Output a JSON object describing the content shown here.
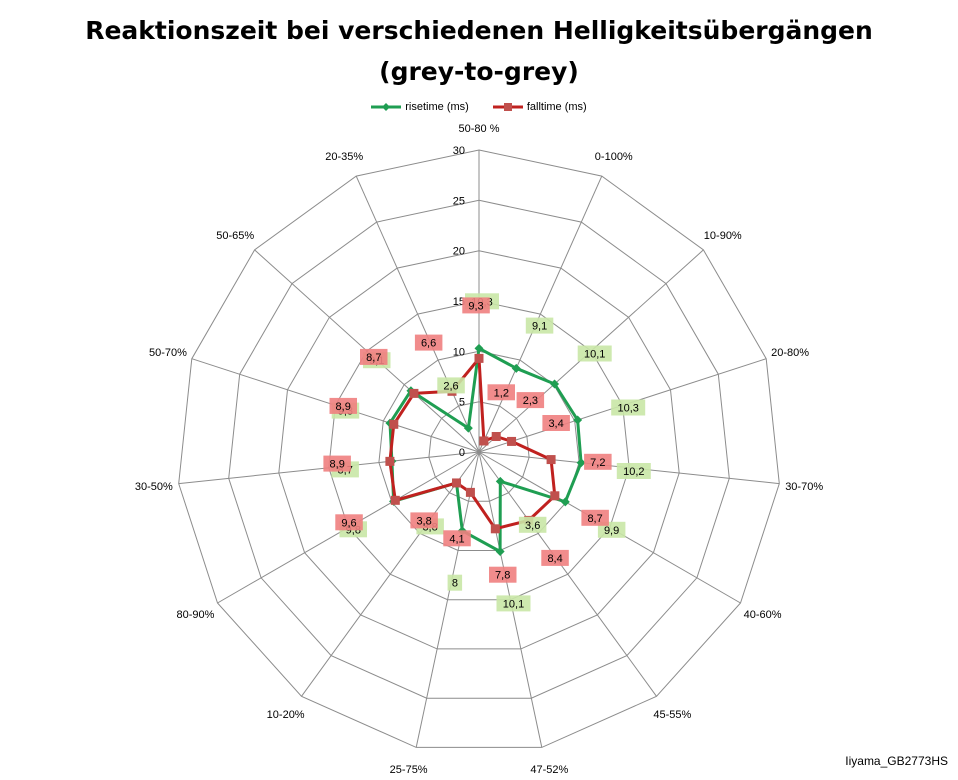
{
  "chart_data": {
    "type": "radar",
    "title": "Reaktionszeit bei verschiedenen Helligkeitsübergängen",
    "subtitle": "(grey-to-grey)",
    "categories": [
      "50-80 %",
      "0-100%",
      "10-90%",
      "20-80%",
      "30-70%",
      "40-60%",
      "45-55%",
      "47-52%",
      "25-75%",
      "10-20%",
      "80-90%",
      "30-50%",
      "50-70%",
      "50-65%",
      "20-35%"
    ],
    "r_ticks": [
      "0",
      "5",
      "10",
      "15",
      "20",
      "25",
      "30"
    ],
    "rlim": [
      0,
      30
    ],
    "grid": true,
    "legend_position": "top",
    "series": [
      {
        "name": "risetime (ms)",
        "color": "#1f9e52",
        "label_bg": "#c9e7a6",
        "values": [
          10.3,
          9.1,
          10.1,
          10.3,
          10.2,
          9.9,
          3.6,
          10.1,
          8,
          3.8,
          9.8,
          8.7,
          9.3,
          9.1,
          2.6
        ],
        "labels": [
          "10,3",
          "9,1",
          "10,1",
          "10,3",
          "10,2",
          "9,9",
          "3,6",
          "10,1",
          "8",
          "3,8",
          "9,8",
          "8,7",
          "9,3",
          "9,1",
          "2,6"
        ]
      },
      {
        "name": "falltime (ms)",
        "color": "#c0211f",
        "label_bg": "#ef8080",
        "values": [
          9.3,
          1.2,
          2.3,
          3.4,
          7.2,
          8.7,
          8.4,
          7.8,
          4.1,
          3.8,
          9.6,
          8.9,
          8.9,
          8.7,
          6.6
        ],
        "labels": [
          "9,3",
          "1,2",
          "2,3",
          "3,4",
          "7,2",
          "8,7",
          "8,4",
          "7,8",
          "4,1",
          "3,8",
          "9,6",
          "8,9",
          "8,9",
          "8,7",
          "6,6"
        ]
      }
    ]
  },
  "footer": "Iiyama_GB2773HS"
}
